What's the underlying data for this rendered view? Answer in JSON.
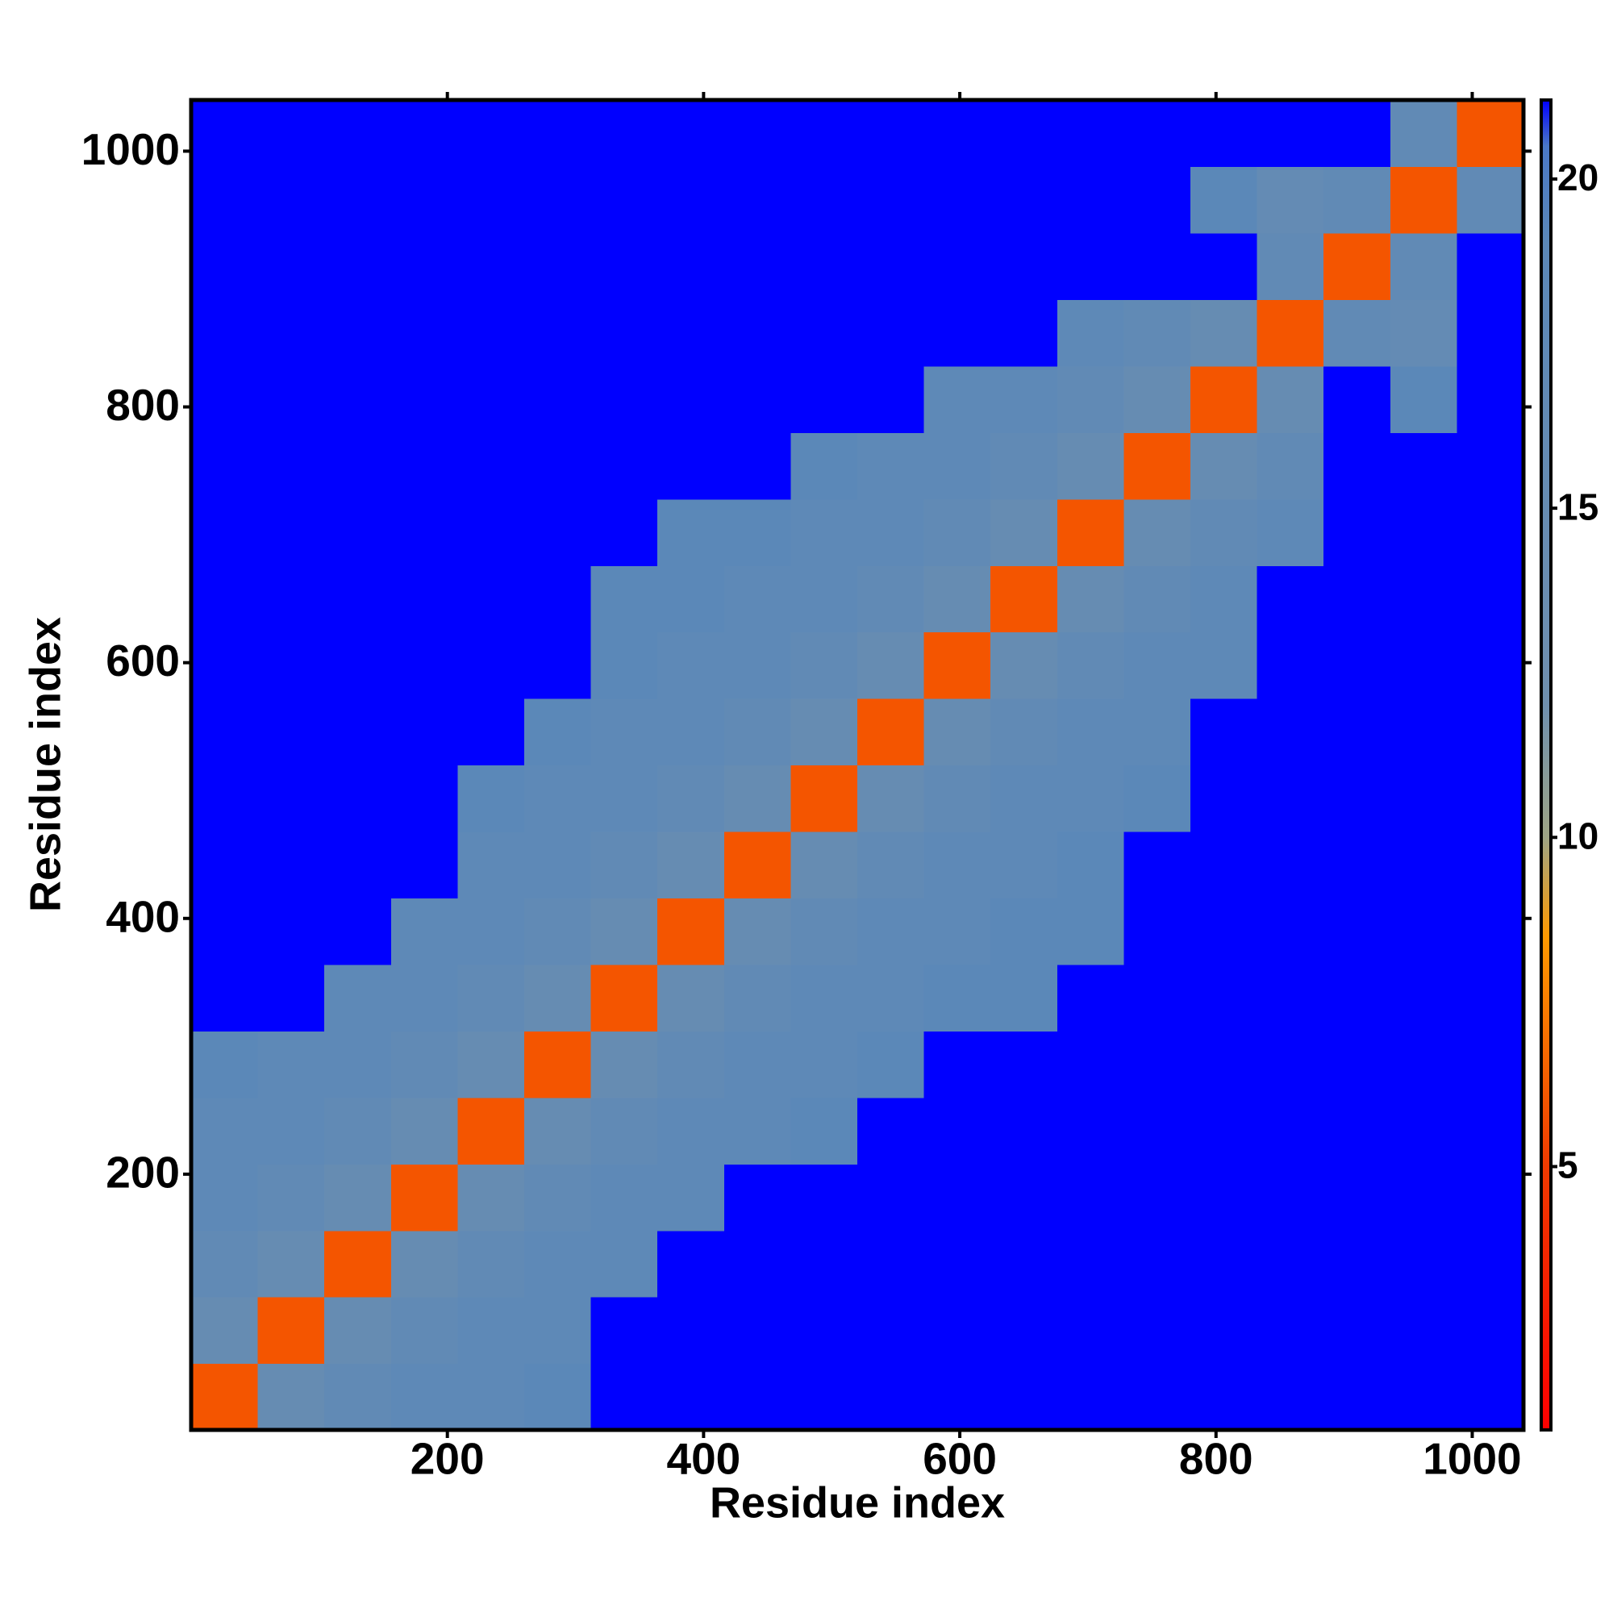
{
  "chart_data": {
    "type": "heatmap",
    "x_label": "Residue index",
    "y_label": "Residue index",
    "xlim": [
      0,
      1040
    ],
    "ylim": [
      0,
      1040
    ],
    "xticks": [
      200,
      400,
      600,
      800,
      1000
    ],
    "yticks": [
      200,
      400,
      600,
      800,
      1000
    ],
    "xbins": [
      0,
      52,
      104,
      156,
      208,
      260,
      312,
      364,
      416,
      468,
      520,
      572,
      624,
      676,
      728,
      780,
      832,
      884,
      936,
      988,
      1040
    ],
    "ybins": [
      0,
      52,
      104,
      156,
      208,
      260,
      312,
      364,
      416,
      468,
      520,
      572,
      624,
      676,
      728,
      780,
      832,
      884,
      936,
      988,
      1040
    ],
    "zlim": [
      1,
      21.2
    ],
    "zticks": [
      5,
      10,
      15,
      20
    ],
    "colorscale": [
      {
        "value": 1,
        "color": "#ff0000"
      },
      {
        "value": 5,
        "color": "#f03a00"
      },
      {
        "value": 8.5,
        "color": "#ff9a00"
      },
      {
        "value": 10,
        "color": "#9ea585"
      },
      {
        "value": 12,
        "color": "#6f8fae"
      },
      {
        "value": 19,
        "color": "#5b88b8"
      },
      {
        "value": 20.5,
        "color": "#4a78c6"
      },
      {
        "value": 21.2,
        "color": "#0000ff"
      }
    ],
    "z": [
      [
        6,
        15,
        17,
        18,
        18,
        19,
        21.2,
        21.2,
        21.2,
        21.2,
        21.2,
        21.2,
        21.2,
        21.2,
        21.2,
        21.2,
        21.2,
        21.2,
        21.2,
        21.2
      ],
      [
        15,
        6,
        15,
        17,
        18,
        18,
        21.2,
        21.2,
        21.2,
        21.2,
        21.2,
        21.2,
        21.2,
        21.2,
        21.2,
        21.2,
        21.2,
        21.2,
        21.2,
        21.2
      ],
      [
        17,
        15,
        6,
        15,
        17,
        18,
        18,
        21.2,
        21.2,
        21.2,
        21.2,
        21.2,
        21.2,
        21.2,
        21.2,
        21.2,
        21.2,
        21.2,
        21.2,
        21.2
      ],
      [
        18,
        17,
        15,
        6,
        15,
        17,
        18,
        18,
        21.2,
        21.2,
        21.2,
        21.2,
        21.2,
        21.2,
        21.2,
        21.2,
        21.2,
        21.2,
        21.2,
        21.2
      ],
      [
        18,
        18,
        17,
        15,
        6,
        15,
        17,
        18,
        18,
        19,
        21.2,
        21.2,
        21.2,
        21.2,
        21.2,
        21.2,
        21.2,
        21.2,
        21.2,
        21.2
      ],
      [
        19,
        18,
        18,
        17,
        15,
        6,
        15,
        17,
        18,
        18,
        19,
        21.2,
        21.2,
        21.2,
        21.2,
        21.2,
        21.2,
        21.2,
        21.2,
        21.2
      ],
      [
        21.2,
        21.2,
        18,
        18,
        17,
        15,
        6,
        15,
        17,
        18,
        18,
        19,
        19,
        21.2,
        21.2,
        21.2,
        21.2,
        21.2,
        21.2,
        21.2
      ],
      [
        21.2,
        21.2,
        21.2,
        18,
        18,
        17,
        15,
        6,
        15,
        17,
        18,
        18,
        19,
        19,
        21.2,
        21.2,
        21.2,
        21.2,
        21.2,
        21.2
      ],
      [
        21.2,
        21.2,
        21.2,
        21.2,
        18,
        18,
        17,
        15,
        6,
        15,
        17,
        18,
        18,
        19,
        21.2,
        21.2,
        21.2,
        21.2,
        21.2,
        21.2
      ],
      [
        21.2,
        21.2,
        21.2,
        21.2,
        19,
        18,
        18,
        17,
        15,
        6,
        15,
        17,
        18,
        18,
        19,
        21.2,
        21.2,
        21.2,
        21.2,
        21.2
      ],
      [
        21.2,
        21.2,
        21.2,
        21.2,
        21.2,
        19,
        18,
        18,
        17,
        15,
        6,
        15,
        17,
        18,
        18,
        21.2,
        21.2,
        21.2,
        21.2,
        21.2
      ],
      [
        21.2,
        21.2,
        21.2,
        21.2,
        21.2,
        21.2,
        19,
        18,
        18,
        17,
        15,
        6,
        15,
        17,
        18,
        18,
        21.2,
        21.2,
        21.2,
        21.2
      ],
      [
        21.2,
        21.2,
        21.2,
        21.2,
        21.2,
        21.2,
        19,
        19,
        18,
        18,
        17,
        15,
        6,
        15,
        17,
        18,
        21.2,
        21.2,
        21.2,
        21.2
      ],
      [
        21.2,
        21.2,
        21.2,
        21.2,
        21.2,
        21.2,
        21.2,
        19,
        19,
        18,
        18,
        17,
        15,
        6,
        15,
        17,
        18,
        21.2,
        21.2,
        21.2
      ],
      [
        21.2,
        21.2,
        21.2,
        21.2,
        21.2,
        21.2,
        21.2,
        21.2,
        21.2,
        19,
        18,
        18,
        17,
        15,
        6,
        15,
        17,
        21.2,
        21.2,
        21.2
      ],
      [
        21.2,
        21.2,
        21.2,
        21.2,
        21.2,
        21.2,
        21.2,
        21.2,
        21.2,
        21.2,
        21.2,
        18,
        18,
        17,
        15,
        6,
        15,
        21.2,
        19,
        21.2
      ],
      [
        21.2,
        21.2,
        21.2,
        21.2,
        21.2,
        21.2,
        21.2,
        21.2,
        21.2,
        21.2,
        21.2,
        21.2,
        21.2,
        18,
        17,
        15,
        6,
        17,
        16,
        21.2
      ],
      [
        21.2,
        21.2,
        21.2,
        21.2,
        21.2,
        21.2,
        21.2,
        21.2,
        21.2,
        21.2,
        21.2,
        21.2,
        21.2,
        21.2,
        21.2,
        21.2,
        17,
        6,
        17,
        21.2
      ],
      [
        21.2,
        21.2,
        21.2,
        21.2,
        21.2,
        21.2,
        21.2,
        21.2,
        21.2,
        21.2,
        21.2,
        21.2,
        21.2,
        21.2,
        21.2,
        19,
        16,
        17,
        6,
        17
      ],
      [
        21.2,
        21.2,
        21.2,
        21.2,
        21.2,
        21.2,
        21.2,
        21.2,
        21.2,
        21.2,
        21.2,
        21.2,
        21.2,
        21.2,
        21.2,
        21.2,
        21.2,
        21.2,
        17,
        6
      ]
    ]
  }
}
